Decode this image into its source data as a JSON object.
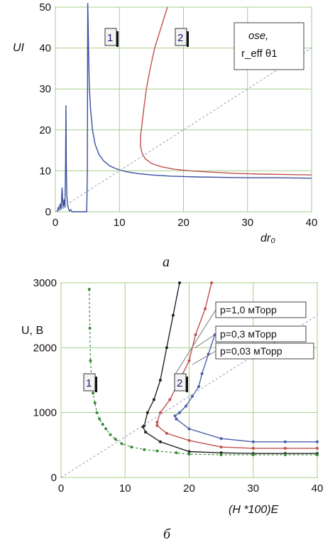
{
  "chart_data": [
    {
      "type": "line",
      "caption": "а",
      "ylabel": "UI",
      "xlabel": "dr₀",
      "note_line1": "ose,",
      "note_line2": "r_eff θ1",
      "xlim": [
        0,
        40
      ],
      "ylim": [
        0,
        50
      ],
      "xticks": [
        "0",
        "10",
        "20",
        "30",
        "40"
      ],
      "yticks": [
        "0",
        "10",
        "20",
        "30",
        "40",
        "50"
      ],
      "grid": true,
      "curve_labels": [
        "1",
        "2"
      ],
      "series": [
        {
          "label": "1",
          "color": "#3a4fa0",
          "x": [
            0.3,
            0.45,
            0.6,
            0.75,
            0.9,
            1.05,
            1.2,
            1.35,
            1.5,
            1.6,
            1.65,
            1.72,
            1.8,
            1.9,
            2.0,
            2.2,
            2.4,
            2.6,
            2.8,
            3.0,
            3.2,
            3.5,
            3.8,
            4.1,
            4.4,
            4.7,
            4.9,
            5.0,
            5.05,
            5.1,
            5.2,
            5.3,
            5.5,
            5.8,
            6.2,
            6.8,
            7.5,
            8.5,
            9.5,
            11,
            13,
            15,
            18,
            22,
            26,
            30,
            35,
            40
          ],
          "y": [
            0.0,
            1.0,
            0.3,
            2.0,
            0.5,
            5.9,
            0.8,
            3.0,
            1.0,
            12.0,
            26.0,
            10.0,
            4.0,
            2.0,
            1.0,
            0.2,
            0.5,
            0.0,
            0.0,
            0.0,
            0.0,
            0.0,
            0.0,
            0.0,
            0.0,
            0.0,
            0.0,
            10.0,
            51.0,
            48.0,
            38.0,
            31.0,
            25.0,
            20.0,
            16.5,
            14.0,
            12.5,
            11.2,
            10.5,
            9.8,
            9.3,
            9.0,
            8.7,
            8.5,
            8.4,
            8.3,
            8.3,
            8.2
          ]
        },
        {
          "label": "2",
          "color": "#c0504d",
          "x": [
            17.5,
            16.5,
            15.5,
            14.8,
            14.2,
            13.8,
            13.5,
            13.3,
            13.3,
            13.5,
            14.0,
            15.0,
            16.5,
            18.5,
            21,
            24,
            28,
            32,
            36,
            40
          ],
          "y": [
            50,
            45,
            40,
            35,
            30,
            25,
            21,
            18.5,
            16,
            14.5,
            13.0,
            11.8,
            11.0,
            10.4,
            10.0,
            9.7,
            9.4,
            9.2,
            9.1,
            9.0
          ]
        },
        {
          "label": "diagonal",
          "color": "#a8a8c8",
          "dashed": true,
          "x": [
            0,
            40
          ],
          "y": [
            0,
            40
          ]
        }
      ]
    },
    {
      "type": "line",
      "caption": "б",
      "ylabel": "U, В",
      "xlabel": "(H *100)E",
      "xlim": [
        0,
        40
      ],
      "ylim": [
        0,
        3000
      ],
      "xticks": [
        "0",
        "10",
        "20",
        "30",
        "40"
      ],
      "yticks": [
        "0",
        "1000",
        "2000",
        "3000"
      ],
      "grid": true,
      "curve_labels": [
        "1",
        "2"
      ],
      "legend": [
        "p=1,0 мТорр",
        "p=0,3 мТорр",
        "p=0,03 мТорр"
      ],
      "series": [
        {
          "name": "p=1,0 мТорр",
          "color": "#222222",
          "x": [
            18.5,
            17.5,
            16.5,
            15.5,
            14.5,
            13.5,
            13.0,
            12.8,
            13.2,
            15.5,
            20,
            25,
            30,
            35,
            40
          ],
          "y": [
            3000,
            2500,
            2000,
            1500,
            1200,
            1000,
            800,
            780,
            700,
            550,
            400,
            380,
            370,
            370,
            370
          ]
        },
        {
          "name": "p=0,3 мТорр",
          "color": "#c0504d",
          "x": [
            23.5,
            22.5,
            21.0,
            20.0,
            18.5,
            17.0,
            15.5,
            15.0,
            15.0,
            16.5,
            20,
            25,
            30,
            35,
            40
          ],
          "y": [
            3000,
            2600,
            2200,
            1800,
            1500,
            1200,
            1000,
            850,
            800,
            680,
            570,
            470,
            450,
            450,
            450
          ]
        },
        {
          "name": "p=0,03 мТорр",
          "color": "#4a5fa8",
          "x": [
            24.0,
            23.0,
            22.0,
            21.5,
            20.5,
            19.5,
            18.5,
            17.8,
            18.0,
            20,
            25,
            30,
            35,
            40
          ],
          "y": [
            2200,
            1900,
            1600,
            1400,
            1250,
            1100,
            1000,
            950,
            900,
            750,
            600,
            550,
            550,
            550
          ]
        },
        {
          "name": "1",
          "color": "#3a8a3a",
          "dashed": true,
          "x": [
            4.4,
            4.5,
            4.6,
            4.8,
            5.0,
            5.3,
            5.6,
            6.0,
            6.5,
            7.0,
            7.7,
            8.5,
            9.5,
            11,
            13,
            15,
            18,
            20,
            25,
            30,
            35,
            40
          ],
          "y": [
            2900,
            2300,
            1800,
            1500,
            1300,
            1150,
            1000,
            900,
            820,
            750,
            660,
            590,
            520,
            470,
            430,
            410,
            380,
            360,
            350,
            350,
            350,
            350
          ]
        },
        {
          "name": "diagonal",
          "color": "#a8a8c8",
          "dashed": true,
          "x": [
            0,
            40
          ],
          "y": [
            0,
            2500
          ]
        }
      ]
    }
  ]
}
